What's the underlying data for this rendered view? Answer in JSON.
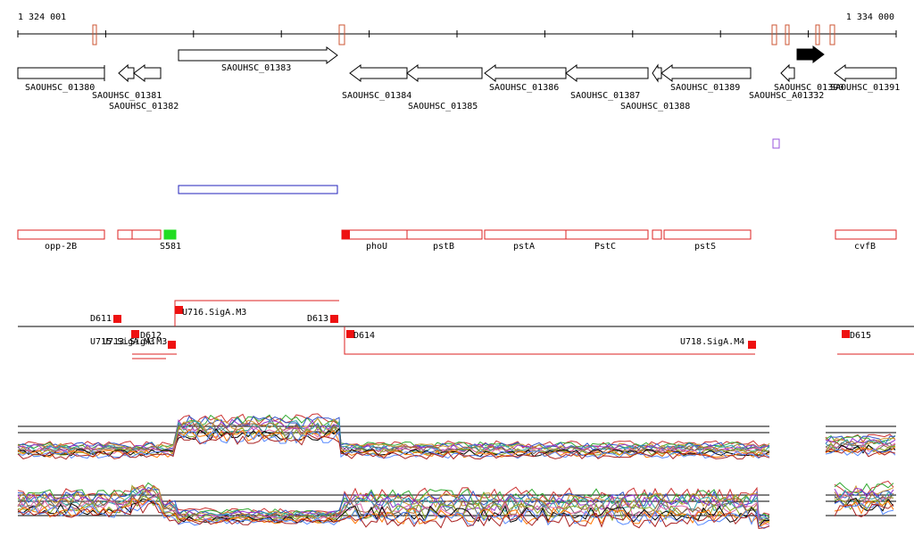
{
  "ruler": {
    "start": "1 324 001",
    "end": "1 334 000"
  },
  "genes": [
    {
      "label": "SAOUHSC_01380"
    },
    {
      "label": "SAOUHSC_01381"
    },
    {
      "label": "SAOUHSC_01382"
    },
    {
      "label": "SAOUHSC_01383"
    },
    {
      "label": "SAOUHSC_01384"
    },
    {
      "label": "SAOUHSC_01385"
    },
    {
      "label": "SAOUHSC_01386"
    },
    {
      "label": "SAOUHSC_01387"
    },
    {
      "label": "SAOUHSC_01388"
    },
    {
      "label": "SAOUHSC_01389"
    },
    {
      "label": "SAOUHSC_A01332"
    },
    {
      "label": "SAOUHSC_01390"
    },
    {
      "label": "SAOUHSC_01391"
    }
  ],
  "features": [
    {
      "label": "opp-2B"
    },
    {
      "label": "S581"
    },
    {
      "label": "phoU"
    },
    {
      "label": "pstB"
    },
    {
      "label": "pstA"
    },
    {
      "label": "PstC"
    },
    {
      "label": "pstS"
    },
    {
      "label": "cvfB"
    }
  ],
  "sites": [
    {
      "label": "D611"
    },
    {
      "label": "D612"
    },
    {
      "label": "U715.SigA.M3"
    },
    {
      "label": "U713.SigA.M3"
    },
    {
      "label": "U716.SigA.M3"
    },
    {
      "label": "D613"
    },
    {
      "label": "D614"
    },
    {
      "label": "U718.SigA.M4"
    },
    {
      "label": "D615"
    }
  ]
}
